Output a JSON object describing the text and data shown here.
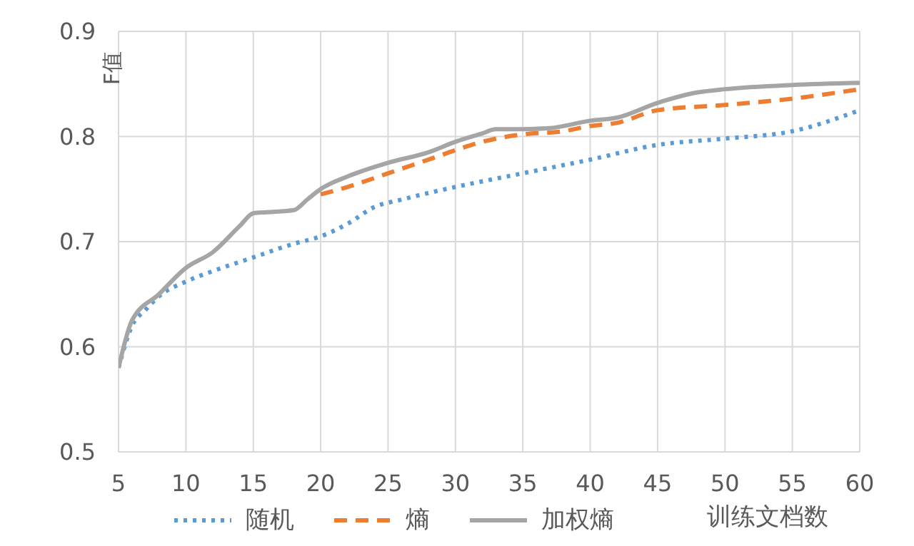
{
  "chart_data": {
    "type": "line",
    "ylabel": "F值",
    "xlabel": "训练文档数",
    "xlim": [
      5,
      60
    ],
    "xticks": [
      5,
      10,
      15,
      20,
      25,
      30,
      35,
      40,
      45,
      50,
      55,
      60
    ],
    "ylim": [
      0.5,
      0.9
    ],
    "yticks": [
      0.5,
      0.6,
      0.7,
      0.8,
      0.9
    ],
    "grid": true,
    "legend": "bottom",
    "marker": "none",
    "series": [
      {
        "name": "随机",
        "color": "#5b9bd5",
        "line_style": "dotted",
        "x": [
          5,
          6,
          7,
          8,
          10,
          12,
          15,
          18,
          20,
          22,
          24,
          26,
          30,
          35,
          40,
          45,
          50,
          55,
          60
        ],
        "values": [
          0.58,
          0.62,
          0.635,
          0.648,
          0.662,
          0.672,
          0.685,
          0.698,
          0.705,
          0.717,
          0.733,
          0.74,
          0.752,
          0.765,
          0.778,
          0.792,
          0.798,
          0.805,
          0.825
        ]
      },
      {
        "name": "熵",
        "color": "#ed7d31",
        "line_style": "dashed",
        "x": [
          20,
          22,
          25,
          28,
          30,
          32,
          35,
          38,
          40,
          42,
          45,
          50,
          55,
          60
        ],
        "values": [
          0.745,
          0.752,
          0.765,
          0.778,
          0.787,
          0.795,
          0.802,
          0.805,
          0.81,
          0.813,
          0.825,
          0.83,
          0.836,
          0.845
        ]
      },
      {
        "name": "加权熵",
        "color": "#a5a5a5",
        "line_style": "solid",
        "x": [
          5,
          6,
          8,
          10,
          12,
          14,
          15,
          16,
          18,
          19,
          20,
          22,
          25,
          28,
          30,
          32,
          33,
          35,
          37,
          40,
          42,
          45,
          48,
          50,
          55,
          60
        ],
        "values": [
          0.58,
          0.625,
          0.65,
          0.675,
          0.69,
          0.715,
          0.727,
          0.728,
          0.73,
          0.74,
          0.75,
          0.762,
          0.775,
          0.785,
          0.795,
          0.803,
          0.807,
          0.807,
          0.808,
          0.815,
          0.818,
          0.832,
          0.842,
          0.845,
          0.849,
          0.851
        ]
      }
    ]
  }
}
